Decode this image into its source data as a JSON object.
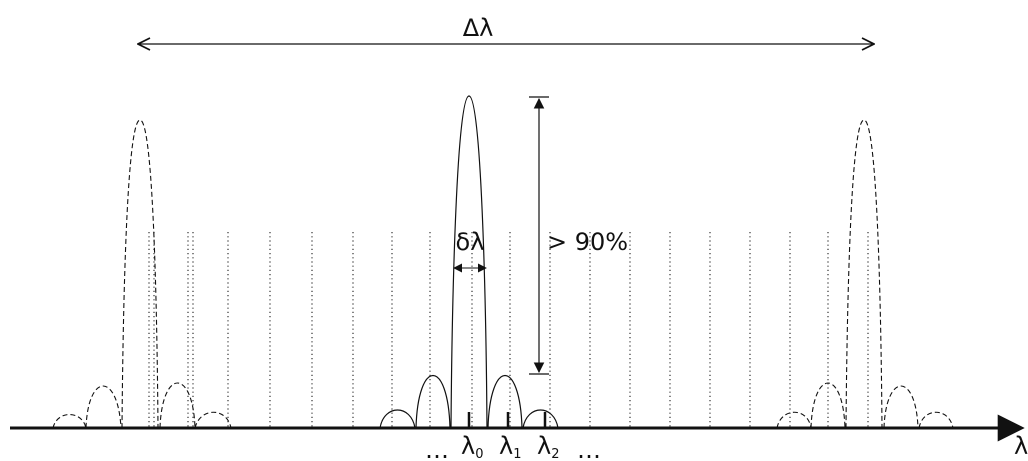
{
  "labels": {
    "delta_lambda": "Δλ",
    "small_delta_lambda": "δλ",
    "over_90": "> 90%",
    "axis_lambda": "λ",
    "ellipsis_left": "…",
    "ellipsis_right": "…",
    "lambda0": {
      "base": "λ",
      "sub": "0"
    },
    "lambda1": {
      "base": "λ",
      "sub": "1"
    },
    "lambda2": {
      "base": "λ",
      "sub": "2"
    }
  },
  "colors": {
    "ink": "#111111"
  }
}
